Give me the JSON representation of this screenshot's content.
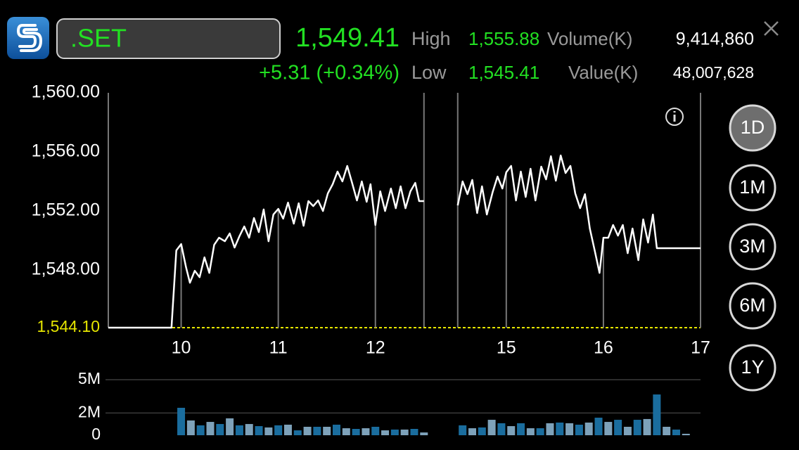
{
  "header": {
    "symbol": ".SET",
    "price": "1,549.41",
    "change": "+5.31 (+0.34%)",
    "high_label": "High",
    "high": "1,555.88",
    "low_label": "Low",
    "low": "1,545.41",
    "volume_label": "Volume(K)",
    "volume": "9,414,860",
    "value_label": "Value(K)",
    "value": "48,007,628"
  },
  "periods": [
    "1D",
    "1M",
    "3M",
    "6M",
    "1Y"
  ],
  "chart_data": [
    {
      "type": "line",
      "color": "#ffffff",
      "x": [
        9.25,
        9.9,
        9.95,
        10.0,
        10.05,
        10.09,
        10.14,
        10.19,
        10.24,
        10.29,
        10.34,
        10.39,
        10.45,
        10.5,
        10.55,
        10.6,
        10.65,
        10.7,
        10.75,
        10.8,
        10.85,
        10.9,
        10.95,
        11.0,
        11.05,
        11.1,
        11.16,
        11.21,
        11.26,
        11.31,
        11.36,
        11.41,
        11.46,
        11.51,
        11.56,
        11.61,
        11.66,
        11.71,
        11.76,
        11.81,
        11.86,
        11.91,
        11.95,
        12.0,
        12.05,
        12.1,
        12.16,
        12.21,
        12.26,
        12.31,
        12.36,
        12.41,
        12.45,
        12.5,
        13.5,
        14.5,
        14.55,
        14.6,
        14.65,
        14.7,
        14.75,
        14.8,
        14.86,
        14.91,
        14.96,
        15.0,
        15.05,
        15.1,
        15.15,
        15.2,
        15.25,
        15.3,
        15.36,
        15.41,
        15.46,
        15.51,
        15.56,
        15.61,
        15.66,
        15.71,
        15.76,
        15.81,
        15.86,
        15.91,
        15.96,
        16.0,
        16.05,
        16.1,
        16.15,
        16.2,
        16.25,
        16.3,
        16.36,
        16.41,
        16.46,
        16.51,
        16.55,
        17.0
      ],
      "values": [
        1544.1,
        1544.1,
        1549.33,
        1549.76,
        1548.19,
        1547.14,
        1547.95,
        1547.52,
        1548.86,
        1547.81,
        1549.71,
        1550.19,
        1549.95,
        1550.48,
        1549.52,
        1550.29,
        1550.95,
        1550.19,
        1551.52,
        1550.57,
        1552.1,
        1549.95,
        1551.76,
        1552.14,
        1551.48,
        1552.57,
        1551.14,
        1552.52,
        1551.0,
        1552.67,
        1552.33,
        1552.71,
        1552.0,
        1553.19,
        1553.81,
        1554.67,
        1554.0,
        1555.05,
        1553.9,
        1552.71,
        1554.0,
        1552.62,
        1553.81,
        1551.05,
        1553.33,
        1552.0,
        1553.52,
        1552.19,
        1553.67,
        1552.19,
        1553.33,
        1553.9,
        1552.67,
        1552.67,
        null,
        1552.38,
        1554.0,
        1553.14,
        1554.1,
        1551.86,
        1553.67,
        1551.76,
        1553.29,
        1554.33,
        1553.52,
        1554.62,
        1555.05,
        1552.71,
        1554.67,
        1552.95,
        1554.86,
        1552.71,
        1555.0,
        1554.14,
        1555.71,
        1554.05,
        1555.76,
        1554.57,
        1555.05,
        1553.19,
        1552.19,
        1553.14,
        1550.81,
        1549.33,
        1547.81,
        1550.19,
        1550.19,
        1551.05,
        1550.33,
        1551.05,
        1549.14,
        1550.81,
        1548.67,
        1551.43,
        1549.86,
        1551.76,
        1549.48,
        1549.48
      ],
      "xlim": [
        9.25,
        17
      ],
      "xbreak": [
        12.5,
        14.5
      ],
      "xticks": [
        10,
        11,
        12,
        15,
        16,
        17
      ],
      "ylim": [
        1544.1,
        1560
      ],
      "yticks": [
        {
          "value": 1548,
          "label": "1,548.00"
        },
        {
          "value": 1552,
          "label": "1,552.00"
        },
        {
          "value": 1556,
          "label": "1,556.00"
        },
        {
          "value": 1560,
          "label": "1,560.00"
        }
      ],
      "prev_close": {
        "value": 1544.1,
        "label": "1,544.10"
      },
      "prev_close_color": "#e6e600"
    },
    {
      "type": "bar",
      "colors": [
        "#1a6d9e",
        "#7ea2ba"
      ],
      "x": [
        10.0,
        10.1,
        10.2,
        10.3,
        10.4,
        10.5,
        10.6,
        10.7,
        10.8,
        10.9,
        11.0,
        11.1,
        11.2,
        11.3,
        11.4,
        11.5,
        11.6,
        11.7,
        11.8,
        11.9,
        12.0,
        12.1,
        12.2,
        12.3,
        12.4,
        12.5,
        14.55,
        14.65,
        14.75,
        14.85,
        14.95,
        15.05,
        15.15,
        15.25,
        15.35,
        15.45,
        15.55,
        15.65,
        15.75,
        15.85,
        15.95,
        16.05,
        16.15,
        16.25,
        16.35,
        16.45,
        16.55,
        16.65,
        16.75,
        16.85
      ],
      "values": [
        2470000,
        1330000,
        890000,
        1200000,
        1010000,
        1520000,
        890000,
        1010000,
        820000,
        700000,
        890000,
        950000,
        440000,
        760000,
        760000,
        760000,
        950000,
        630000,
        570000,
        630000,
        760000,
        440000,
        510000,
        510000,
        570000,
        250000,
        890000,
        630000,
        700000,
        1390000,
        1080000,
        820000,
        1080000,
        630000,
        630000,
        1080000,
        1140000,
        1080000,
        950000,
        1140000,
        1580000,
        1200000,
        1390000,
        760000,
        1390000,
        1460000,
        3670000,
        760000,
        510000,
        130000
      ],
      "xlim": [
        9.25,
        17
      ],
      "xbreak": [
        12.5,
        14.5
      ],
      "ylim": [
        0,
        5000000
      ],
      "yticks": [
        0,
        {
          "value": 2000000,
          "label": "2M"
        },
        {
          "value": 5000000,
          "label": "5M"
        }
      ]
    }
  ]
}
